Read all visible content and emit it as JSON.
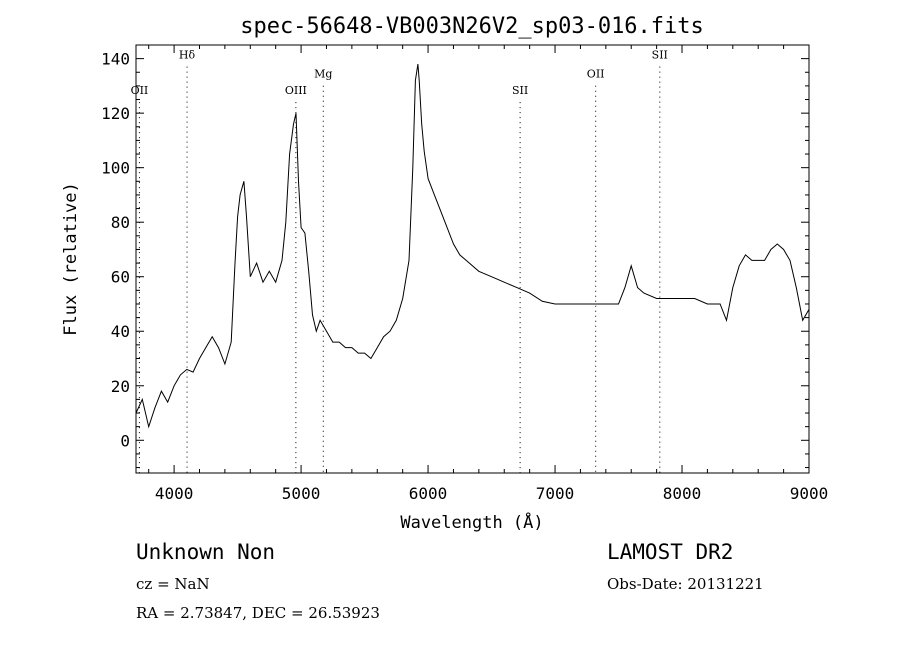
{
  "chart_data": {
    "type": "line",
    "title": "spec-56648-VB003N26V2_sp03-016.fits",
    "xlabel": "Wavelength (Å)",
    "ylabel": "Flux (relative)",
    "xlim": [
      3700,
      9000
    ],
    "ylim": [
      -12,
      145
    ],
    "xticks": [
      4000,
      5000,
      6000,
      7000,
      8000,
      9000
    ],
    "yticks": [
      0,
      20,
      40,
      60,
      80,
      100,
      120,
      140
    ],
    "grid": false,
    "series": [
      {
        "x": [
          3700,
          3750,
          3800,
          3850,
          3900,
          3950,
          4000,
          4050,
          4100,
          4150,
          4200,
          4250,
          4300,
          4350,
          4400,
          4450,
          4480,
          4500,
          4520,
          4550,
          4570,
          4600,
          4650,
          4700,
          4750,
          4800,
          4850,
          4880,
          4910,
          4940,
          4960,
          4980,
          5000,
          5030,
          5060,
          5090,
          5120,
          5150,
          5200,
          5250,
          5300,
          5350,
          5400,
          5450,
          5500,
          5550,
          5600,
          5650,
          5700,
          5750,
          5800,
          5850,
          5880,
          5900,
          5920,
          5930,
          5950,
          5970,
          6000,
          6050,
          6100,
          6150,
          6200,
          6250,
          6300,
          6400,
          6500,
          6600,
          6700,
          6800,
          6900,
          7000,
          7100,
          7200,
          7300,
          7400,
          7500,
          7550,
          7600,
          7650,
          7700,
          7800,
          7900,
          8000,
          8100,
          8200,
          8300,
          8350,
          8400,
          8450,
          8500,
          8550,
          8600,
          8650,
          8700,
          8750,
          8800,
          8850,
          8900,
          8950,
          9000
        ],
        "y": [
          10,
          15,
          5,
          12,
          18,
          14,
          20,
          24,
          26,
          25,
          30,
          34,
          38,
          34,
          28,
          36,
          65,
          82,
          90,
          95,
          82,
          60,
          65,
          58,
          62,
          58,
          66,
          80,
          105,
          116,
          120,
          95,
          78,
          76,
          62,
          46,
          40,
          44,
          40,
          36,
          36,
          34,
          34,
          32,
          32,
          30,
          34,
          38,
          40,
          44,
          52,
          66,
          100,
          132,
          138,
          132,
          116,
          106,
          96,
          90,
          84,
          78,
          72,
          68,
          66,
          62,
          60,
          58,
          56,
          54,
          51,
          50,
          50,
          50,
          50,
          50,
          50,
          56,
          64,
          56,
          54,
          52,
          52,
          52,
          52,
          50,
          50,
          44,
          56,
          64,
          68,
          66,
          66,
          66,
          70,
          72,
          70,
          66,
          56,
          44,
          48
        ]
      }
    ],
    "lines": [
      {
        "label": "OII",
        "x": 3727,
        "label_y": 127
      },
      {
        "label": "Hδ",
        "x": 4102,
        "label_y": 140
      },
      {
        "label": "OIII",
        "x": 4959,
        "label_y": 127
      },
      {
        "label": "Mg",
        "x": 5175,
        "label_y": 133
      },
      {
        "label": "SII",
        "x": 6725,
        "label_y": 127
      },
      {
        "label": "OII",
        "x": 7320,
        "label_y": 133
      },
      {
        "label": "SII",
        "x": 7825,
        "label_y": 140
      }
    ]
  },
  "info": {
    "class_text": "Unknown    Non",
    "survey": "LAMOST DR2",
    "cz": "cz = NaN",
    "obs_date": "Obs-Date: 20131221",
    "radec": "RA =    2.73847, DEC =   26.53923"
  }
}
